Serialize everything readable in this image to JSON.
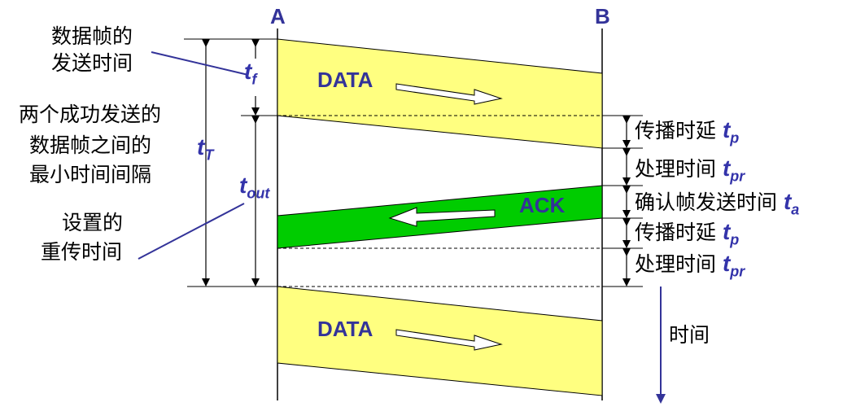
{
  "hosts": {
    "a": "A",
    "b": "B"
  },
  "frames": {
    "data1": "DATA",
    "ack": "ACK",
    "data2": "DATA"
  },
  "left_labels": {
    "tf_desc_1": "数据帧的",
    "tf_desc_2": "发送时间",
    "min_interval_1": "两个成功发送的",
    "min_interval_2": "数据帧之间的",
    "min_interval_3": "最小时间间隔",
    "retrans_1": "设置的",
    "retrans_2": "重传时间"
  },
  "variables": {
    "tf": {
      "base": "t",
      "sub": "f"
    },
    "tT": {
      "base": "t",
      "sub": "T"
    },
    "tout": {
      "base": "t",
      "sub": "out"
    }
  },
  "right_labels": [
    {
      "text": "传播时延 ",
      "var": "t",
      "sub": "p"
    },
    {
      "text": "处理时间 ",
      "var": "t",
      "sub": "pr"
    },
    {
      "text": "确认帧发送时间 ",
      "var": "t",
      "sub": "a"
    },
    {
      "text": "传播时延 ",
      "var": "t",
      "sub": "p"
    },
    {
      "text": "处理时间 ",
      "var": "t",
      "sub": "pr"
    }
  ],
  "time_label": "时间",
  "colors": {
    "data_fill": "#ffff80",
    "ack_fill": "#00cc00",
    "line": "#000000",
    "accent": "#333399"
  }
}
